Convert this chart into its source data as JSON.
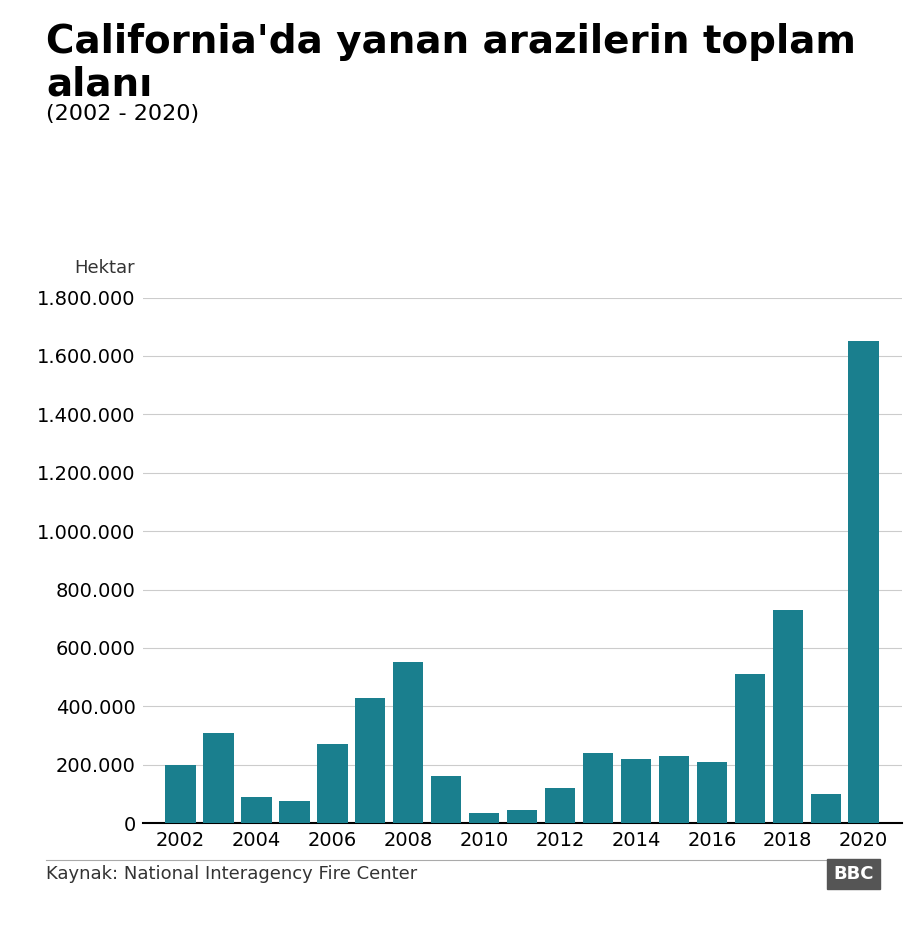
{
  "title_line1": "California'da yanan arazilerin toplam",
  "title_line2": "alanı",
  "subtitle": "(2002 - 2020)",
  "ylabel": "Hektar",
  "source": "Kaynak: National Interagency Fire Center",
  "bbc_label": "BBC",
  "years": [
    2002,
    2003,
    2004,
    2005,
    2006,
    2007,
    2008,
    2009,
    2010,
    2011,
    2012,
    2013,
    2014,
    2015,
    2016,
    2017,
    2018,
    2019,
    2020
  ],
  "values": [
    200000,
    310000,
    90000,
    75000,
    270000,
    430000,
    550000,
    160000,
    35000,
    45000,
    120000,
    240000,
    220000,
    230000,
    210000,
    510000,
    730000,
    100000,
    1650000
  ],
  "bar_color": "#1a7f8e",
  "background_color": "#ffffff",
  "ylim": [
    0,
    1800000
  ],
  "yticks": [
    0,
    200000,
    400000,
    600000,
    800000,
    1000000,
    1200000,
    1400000,
    1600000,
    1800000
  ],
  "grid_color": "#cccccc",
  "title_fontsize": 28,
  "subtitle_fontsize": 16,
  "ylabel_fontsize": 13,
  "tick_fontsize": 14,
  "source_fontsize": 13
}
